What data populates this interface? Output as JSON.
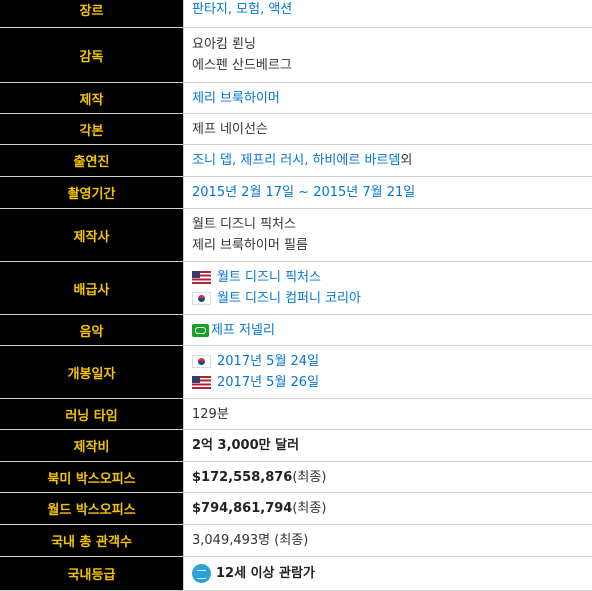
{
  "rows": {
    "genre": {
      "label": "장르",
      "value": "판타지, 모험, 액션"
    },
    "director": {
      "label": "감독",
      "line1": "요아킴 뢴닝",
      "line2": "에스펜 산드베르그"
    },
    "producer": {
      "label": "제작",
      "value": "제리 브룩하이머"
    },
    "screenplay": {
      "label": "각본",
      "value": "제프 네이선슨"
    },
    "cast": {
      "label": "출연진",
      "value": "조니 뎁, 제프리 러시, 하비에르 바르뎀",
      "suffix": " 외"
    },
    "filming": {
      "label": "촬영기간",
      "value": "2015년 2월 17일 ~ 2015년 7월 21일"
    },
    "production_company": {
      "label": "제작사",
      "line1": "월트 디즈니 픽처스",
      "line2": "제리 브룩하이머 필름"
    },
    "distributor": {
      "label": "배급사",
      "line1": "월트 디즈니 픽처스",
      "line2": "월트 디즈니 컴퍼니 코리아",
      "flag1": "us-flag-icon",
      "flag2": "kr-flag-icon"
    },
    "music": {
      "label": "음악",
      "value": "제프 저넬리",
      "icon": "link-icon"
    },
    "release": {
      "label": "개봉일자",
      "line1": "2017년 5월 24일",
      "line2": "2017년 5월 26일",
      "flag1": "kr-flag-icon",
      "flag2": "us-flag-icon"
    },
    "runtime": {
      "label": "러닝 타임",
      "value": "129분"
    },
    "budget": {
      "label": "제작비",
      "value": "2억 3,000만 달러"
    },
    "na_box": {
      "label": "북미 박스오피스",
      "value": "$172,558,876",
      "suffix": " (최종)"
    },
    "world_box": {
      "label": "월드 박스오피스",
      "value": "$794,861,794",
      "suffix": " (최종)"
    },
    "kr_audience": {
      "label": "국내 총 관객수",
      "value": "3,049,493명 (최종)"
    },
    "kr_rating": {
      "label": "국내등급",
      "value": "12세 이상 관람가",
      "icon": "rating-12-icon"
    }
  },
  "colors": {
    "key_bg": "#000000",
    "key_text": "#f5c400",
    "link": "#0275d8"
  }
}
